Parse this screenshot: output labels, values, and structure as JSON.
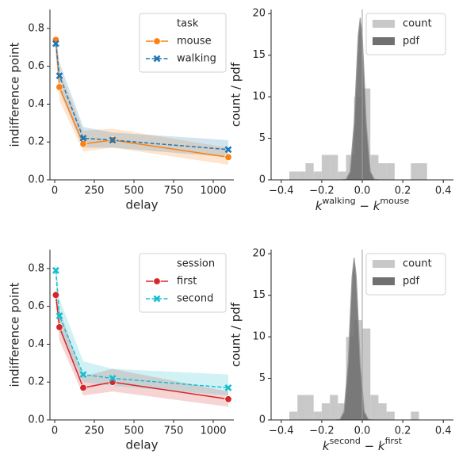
{
  "chart_data": [
    {
      "type": "line",
      "xlabel": "delay",
      "ylabel": "indifference point",
      "legend_title": "task",
      "legend": "upper right",
      "x": [
        7,
        30,
        180,
        365,
        1095
      ],
      "xlim": [
        -30,
        1130
      ],
      "xticks": [
        0,
        250,
        500,
        750,
        1000
      ],
      "ylim": [
        0,
        0.9
      ],
      "yticks": [
        {
          "value": 0,
          "label": "0.0"
        },
        0.2,
        0.4,
        0.6,
        0.8
      ],
      "series": [
        {
          "name": "mouse",
          "color": "#ff7f0e",
          "marker": "o",
          "dashed": false,
          "values": [
            0.74,
            0.49,
            0.19,
            0.21,
            0.12
          ],
          "ci_low": [
            0.7,
            0.42,
            0.15,
            0.17,
            0.08
          ],
          "ci_high": [
            0.78,
            0.58,
            0.26,
            0.27,
            0.17
          ]
        },
        {
          "name": "walking",
          "color": "#1f77b4",
          "marker": "x",
          "dashed": true,
          "values": [
            0.72,
            0.55,
            0.22,
            0.21,
            0.16
          ],
          "ci_low": [
            0.66,
            0.47,
            0.17,
            0.17,
            0.12
          ],
          "ci_high": [
            0.78,
            0.62,
            0.28,
            0.25,
            0.21
          ]
        }
      ]
    },
    {
      "type": "histogram",
      "ylabel": "count / pdf",
      "legend": "upper right",
      "xlabel_parts": [
        {
          "text": "k",
          "sup": false
        },
        {
          "text": "walking",
          "sup": true
        },
        {
          "text": " − ",
          "sup": false
        },
        {
          "text": "k",
          "sup": false
        },
        {
          "text": "mouse",
          "sup": true
        }
      ],
      "xlim": [
        -0.45,
        0.45
      ],
      "xticks": [
        {
          "value": -0.4,
          "label": "−0.4"
        },
        {
          "value": -0.2,
          "label": "−0.2"
        },
        {
          "value": 0,
          "label": "0.0"
        },
        0.2,
        0.4
      ],
      "ylim": [
        0,
        20.5
      ],
      "yticks": [
        0,
        5,
        10,
        15,
        20
      ],
      "reference_line": 0,
      "bins": [
        -0.36,
        -0.32,
        -0.28,
        -0.24,
        -0.2,
        -0.16,
        -0.12,
        -0.08,
        -0.04,
        0,
        0.04,
        0.08,
        0.12,
        0.16,
        0.2,
        0.24,
        0.28,
        0.32
      ],
      "series": [
        {
          "name": "count",
          "color": "#c8c8c8",
          "values": [
            1,
            1,
            2,
            1,
            3,
            3,
            1,
            3,
            10,
            11,
            3,
            2,
            2,
            0,
            0,
            2,
            2
          ]
        },
        {
          "name": "pdf",
          "color": "#707070",
          "x": [
            -0.1,
            -0.08,
            -0.06,
            -0.04,
            -0.03,
            -0.02,
            -0.01,
            0,
            0.01,
            0.02,
            0.04,
            0.06,
            0.08
          ],
          "values": [
            0,
            0.06,
            1.0,
            6.7,
            12.1,
            17.3,
            19.5,
            17.3,
            12.1,
            6.7,
            1.0,
            0.06,
            0
          ]
        }
      ]
    },
    {
      "type": "line",
      "xlabel": "delay",
      "ylabel": "indifference point",
      "legend_title": "session",
      "legend": "upper right",
      "x": [
        7,
        30,
        180,
        365,
        1095
      ],
      "xlim": [
        -30,
        1130
      ],
      "xticks": [
        0,
        250,
        500,
        750,
        1000
      ],
      "ylim": [
        0,
        0.9
      ],
      "yticks": [
        {
          "value": 0,
          "label": "0.0"
        },
        0.2,
        0.4,
        0.6,
        0.8
      ],
      "series": [
        {
          "name": "first",
          "color": "#d62728",
          "marker": "o",
          "dashed": false,
          "values": [
            0.66,
            0.49,
            0.17,
            0.2,
            0.11
          ],
          "ci_low": [
            0.62,
            0.42,
            0.13,
            0.15,
            0.07
          ],
          "ci_high": [
            0.7,
            0.58,
            0.23,
            0.27,
            0.15
          ]
        },
        {
          "name": "second",
          "color": "#17becf",
          "marker": "x",
          "dashed": true,
          "values": [
            0.79,
            0.55,
            0.24,
            0.22,
            0.17
          ],
          "ci_low": [
            0.74,
            0.47,
            0.2,
            0.18,
            0.13
          ],
          "ci_high": [
            0.84,
            0.64,
            0.31,
            0.27,
            0.24
          ]
        }
      ]
    },
    {
      "type": "histogram",
      "ylabel": "count / pdf",
      "legend": "upper right",
      "xlabel_parts": [
        {
          "text": "k",
          "sup": false
        },
        {
          "text": "second",
          "sup": true
        },
        {
          "text": " − ",
          "sup": false
        },
        {
          "text": "k",
          "sup": false
        },
        {
          "text": "first",
          "sup": true
        }
      ],
      "xlim": [
        -0.45,
        0.45
      ],
      "xticks": [
        {
          "value": -0.4,
          "label": "−0.4"
        },
        {
          "value": -0.2,
          "label": "−0.2"
        },
        {
          "value": 0,
          "label": "0.0"
        },
        0.2,
        0.4
      ],
      "ylim": [
        0,
        20.5
      ],
      "yticks": [
        0,
        5,
        10,
        15,
        20
      ],
      "reference_line": 0,
      "bins": [
        -0.36,
        -0.32,
        -0.28,
        -0.24,
        -0.2,
        -0.16,
        -0.12,
        -0.08,
        -0.04,
        0,
        0.04,
        0.08,
        0.12,
        0.16,
        0.2,
        0.24,
        0.28
      ],
      "series": [
        {
          "name": "count",
          "color": "#c8c8c8",
          "values": [
            1,
            3,
            3,
            1,
            2,
            3,
            2,
            10,
            12,
            11,
            3,
            2,
            1,
            0,
            0,
            1
          ]
        },
        {
          "name": "pdf",
          "color": "#707070",
          "x": [
            -0.13,
            -0.11,
            -0.09,
            -0.07,
            -0.06,
            -0.05,
            -0.04,
            -0.03,
            -0.02,
            -0.01,
            0.01,
            0.03,
            0.05
          ],
          "values": [
            0,
            0.06,
            1.0,
            6.7,
            12.1,
            17.3,
            19.5,
            17.3,
            12.1,
            6.7,
            1.0,
            0.06,
            0
          ]
        }
      ]
    }
  ]
}
